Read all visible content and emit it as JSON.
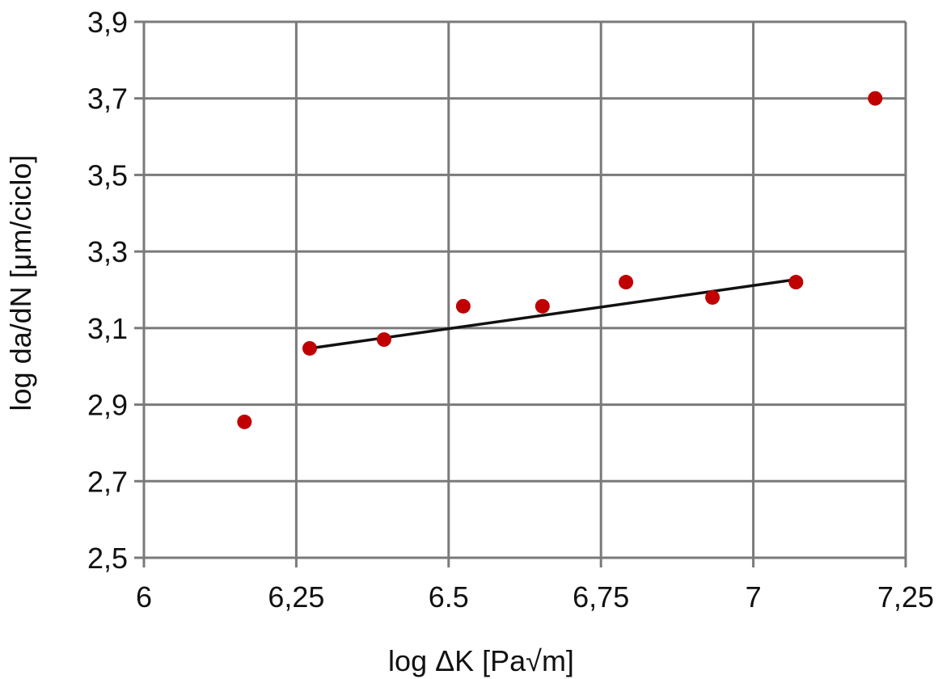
{
  "chart_data": {
    "type": "scatter",
    "xlabel": "log ΔK [Pa√m]",
    "ylabel": "log da/dN [μm/ciclo]",
    "xlim": [
      6,
      7.25
    ],
    "ylim": [
      2.5,
      3.9
    ],
    "xticks": [
      "6",
      "6,25",
      "6.5",
      "6,75",
      "7",
      "7,25"
    ],
    "xtick_values": [
      6,
      6.25,
      6.5,
      6.75,
      7,
      7.25
    ],
    "yticks": [
      "2,5",
      "2,7",
      "2,9",
      "3,1",
      "3,3",
      "3,5",
      "3,7",
      "3,9"
    ],
    "ytick_values": [
      2.5,
      2.7,
      2.9,
      3.1,
      3.3,
      3.5,
      3.7,
      3.9
    ],
    "grid": true,
    "series": [
      {
        "type": "scatter",
        "color": "#c00000",
        "points": [
          {
            "x": 6.165,
            "y": 2.855
          },
          {
            "x": 6.272,
            "y": 3.047
          },
          {
            "x": 6.394,
            "y": 3.07
          },
          {
            "x": 6.524,
            "y": 3.157
          },
          {
            "x": 6.654,
            "y": 3.157
          },
          {
            "x": 6.791,
            "y": 3.22
          },
          {
            "x": 6.933,
            "y": 3.18
          },
          {
            "x": 7.07,
            "y": 3.22
          },
          {
            "x": 7.2,
            "y": 3.7
          }
        ]
      },
      {
        "type": "trendline",
        "color": "#111111",
        "points": [
          {
            "x": 6.272,
            "y": 3.047
          },
          {
            "x": 7.07,
            "y": 3.227
          }
        ]
      }
    ]
  }
}
